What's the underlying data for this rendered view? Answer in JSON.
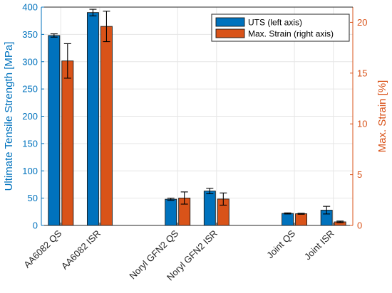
{
  "chart_data": {
    "type": "bar",
    "categories": [
      "AA6082 QS",
      "AA6082 ISR",
      "Noryl GFN2 QS",
      "Noryl GFN2 ISR",
      "Joint QS",
      "Joint ISR"
    ],
    "series": [
      {
        "name": "UTS (left axis)",
        "axis": "left",
        "color": "#0072BD",
        "values": [
          348,
          390,
          48,
          63,
          22,
          28
        ],
        "errors": [
          3,
          6,
          2,
          5,
          1,
          7
        ]
      },
      {
        "name": "Max. Strain (right axis)",
        "axis": "right",
        "color": "#D95319",
        "values": [
          16.2,
          19.6,
          2.7,
          2.6,
          1.15,
          0.35
        ],
        "errors": [
          1.7,
          1.5,
          0.6,
          0.6,
          0.05,
          0.08
        ]
      }
    ],
    "ylabel_left": "Ultimate Tensile Strength [MPa]",
    "ylabel_right": "Max. Strain [%]",
    "ylim_left": [
      0,
      400
    ],
    "ylim_right": [
      0,
      21.5
    ],
    "yticks_left": [
      0,
      50,
      100,
      150,
      200,
      250,
      300,
      350,
      400
    ],
    "yticks_right": [
      0,
      5,
      10,
      15,
      20
    ],
    "grid": true,
    "legend_placement": "top-right",
    "left_axis_color": "#0072BD",
    "right_axis_color": "#D95319"
  }
}
